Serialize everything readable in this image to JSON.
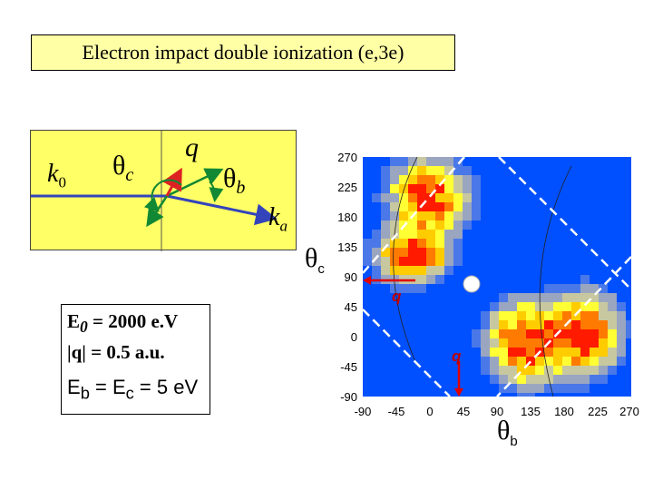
{
  "title": "Electron impact double ionization (e,3e)",
  "kinematics": {
    "k0": "k",
    "k0_sub": "0",
    "theta_c": "θ",
    "theta_c_sub": "c",
    "q": "q",
    "theta_b": "θ",
    "theta_b_sub": "b",
    "ka": "k",
    "ka_sub": "a"
  },
  "params": {
    "e0_label": "E",
    "e0_sub": "0",
    "e0_value": " = 2000 e.V",
    "q_value": "|q| = 0.5 a.u.",
    "eb_label": "E",
    "eb_sub": "b",
    "ec_label": " = E",
    "ec_sub": "c",
    "eb_value": " = 5 eV"
  },
  "chart_data": {
    "type": "heatmap",
    "xlabel": "θb",
    "ylabel": "θc",
    "xlim": [
      -90,
      270
    ],
    "ylim": [
      -90,
      270
    ],
    "x_ticks": [
      "-90",
      "-45",
      "0",
      "45",
      "90",
      "135",
      "180",
      "225",
      "270"
    ],
    "y_ticks": [
      "270",
      "225",
      "180",
      "135",
      "90",
      "45",
      "0",
      "-45",
      "-90"
    ],
    "annotations": [
      "q",
      "q"
    ],
    "colors": {
      "background": "#0050ff",
      "hot": "#ff0000",
      "warm": "#ffff00"
    }
  }
}
